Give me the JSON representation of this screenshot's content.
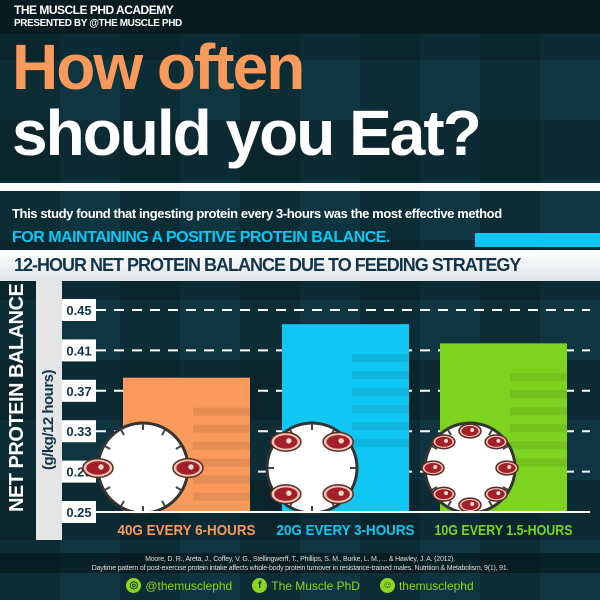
{
  "header": {
    "academy": "THE MUSCLE PHD ACADEMY",
    "presented": "PRESENTED BY @THE MUSCLE PHD"
  },
  "title": {
    "line1": "How often",
    "line2": "should you Eat?"
  },
  "subtitle": {
    "line1": "This study found that ingesting protein every 3-hours was the most effective method",
    "line2": "FOR MAINTAINING A POSITIVE PROTEIN BALANCE."
  },
  "chart_data": {
    "type": "bar",
    "title": "12-HOUR NET PROTEIN BALANCE DUE TO FEEDING STRATEGY",
    "ylabel": "NET PROTEIN BALANCE",
    "yunit": "(g/kg/12 hours)",
    "categories": [
      "40G EVERY 6-HOURS",
      "20G EVERY 3-HOURS",
      "10G EVERY 1.5-HOURS"
    ],
    "values": [
      0.383,
      0.436,
      0.417
    ],
    "meals_per_clock": [
      2,
      4,
      8
    ],
    "colors": [
      "#f99a5a",
      "#10c6f3",
      "#7dd320"
    ],
    "ylim": [
      0.25,
      0.45
    ],
    "yticks": [
      "0.25",
      "0.29",
      "0.33",
      "0.37",
      "0.41",
      "0.45"
    ],
    "grid": true
  },
  "citation": {
    "line1": "Moore, D. R., Areta, J., Coffey, V. G., Stellingwerff, T., Phillips, S. M., Burke, L. M., ... & Hawley, J. A. (2012).",
    "line2": "Daytime pattern of post-exercise protein intake affects whole-body protein turnover in resistance-trained males. Nutrition & Metabolism, 9(1), 91."
  },
  "social": [
    {
      "icon": "instagram-icon",
      "label": "@themusclephd"
    },
    {
      "icon": "facebook-icon",
      "label": "The Muscle PhD"
    },
    {
      "icon": "snapchat-icon",
      "label": "themusclephd"
    }
  ]
}
